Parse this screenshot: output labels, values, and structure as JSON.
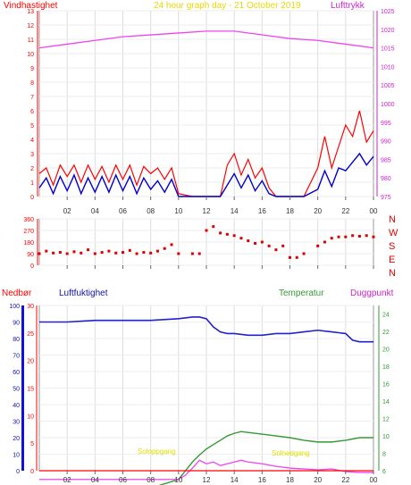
{
  "title": "24 hour graph day - 21 October 2019",
  "top": {
    "left_label": "Vindhastighet",
    "right_label": "Lufttrykk",
    "y_left_ticks": [
      "0",
      "1",
      "2",
      "3",
      "4",
      "5",
      "6",
      "7",
      "8",
      "9",
      "10",
      "11",
      "12",
      "13"
    ],
    "y_right_ticks": [
      "975",
      "980",
      "985",
      "990",
      "995",
      "1000",
      "1005",
      "1010",
      "1015",
      "1020",
      "1025"
    ]
  },
  "middle": {
    "y_left_ticks": [
      "0",
      "90",
      "180",
      "270",
      "360"
    ],
    "compass": [
      "N",
      "W",
      "S",
      "E",
      "N"
    ]
  },
  "bottom": {
    "nedbor_label": "Nedbør",
    "luftfukt_label": "Luftfuktighet",
    "temp_label": "Temperatur",
    "dugg_label": "Duggpunkt",
    "y_nedbor_ticks": [
      "0",
      "5",
      "10",
      "15",
      "20",
      "25",
      "30"
    ],
    "y_hum_ticks": [
      "0",
      "10",
      "20",
      "30",
      "40",
      "50",
      "60",
      "70",
      "80",
      "90",
      "100"
    ],
    "y_temp_ticks": [
      "6",
      "8",
      "10",
      "12",
      "14",
      "16",
      "18",
      "20",
      "22",
      "24"
    ],
    "soloppgang": "Soloppgang",
    "solnedgang": "Solnedgang"
  },
  "x_ticks": [
    "02",
    "04",
    "06",
    "08",
    "10",
    "12",
    "14",
    "16",
    "18",
    "20",
    "22",
    "00"
  ],
  "colors": {
    "wind": "#ff0000",
    "wind_avg": "#0000cc",
    "pressure": "#ee44ee",
    "winddir": "#dd0000",
    "humidity": "#2222cc",
    "temperature": "#339933",
    "dewpoint": "#ee44ee",
    "rain": "#ff0000",
    "sun": "#e0e000"
  },
  "chart_data": [
    {
      "type": "line",
      "name": "wind_pressure",
      "xlim": [
        0,
        24
      ],
      "ylim_left": [
        0,
        13
      ],
      "ylim_right": [
        975,
        1025
      ],
      "pressure": {
        "x": [
          0,
          2,
          4,
          6,
          8,
          10,
          12,
          14,
          16,
          18,
          20,
          22,
          24
        ],
        "y": [
          1015,
          1016,
          1017,
          1018,
          1018.5,
          1019,
          1019.5,
          1019.5,
          1018.5,
          1017.5,
          1017,
          1016,
          1015
        ]
      },
      "wind_avg": {
        "x": [
          0,
          0.5,
          1,
          1.5,
          2,
          2.5,
          3,
          3.5,
          4,
          4.5,
          5,
          5.5,
          6,
          6.5,
          7,
          7.5,
          8,
          8.5,
          9,
          9.5,
          10,
          11,
          12,
          13,
          13.5,
          14,
          14.5,
          15,
          15.5,
          16,
          16.5,
          17,
          18,
          19,
          20,
          20.5,
          21,
          21.5,
          22,
          22.5,
          23,
          23.5,
          24
        ],
        "y": [
          0.6,
          1.3,
          0.2,
          1.4,
          0.4,
          1.5,
          0.2,
          1.3,
          0.3,
          1.4,
          0.3,
          1.5,
          0.4,
          1.4,
          0.2,
          1.3,
          0.5,
          1.1,
          0.3,
          1.2,
          0,
          0,
          0,
          0,
          0.8,
          1.6,
          0.6,
          1.5,
          0.4,
          1.1,
          0.2,
          0,
          0,
          0,
          0.5,
          1.8,
          0.7,
          2.0,
          1.8,
          2.4,
          3.0,
          2.2,
          2.8
        ]
      },
      "wind_gust": {
        "x": [
          0,
          0.5,
          1,
          1.5,
          2,
          2.5,
          3,
          3.5,
          4,
          4.5,
          5,
          5.5,
          6,
          6.5,
          7,
          7.5,
          8,
          8.5,
          9,
          9.5,
          10,
          11,
          12,
          13,
          13.5,
          14,
          14.5,
          15,
          15.5,
          16,
          16.5,
          17,
          18,
          19,
          20,
          20.5,
          21,
          21.5,
          22,
          22.5,
          23,
          23.5,
          24
        ],
        "y": [
          1.6,
          2.0,
          0.8,
          2.2,
          1.4,
          2.2,
          1.0,
          2.2,
          1.2,
          2.1,
          1.0,
          2.2,
          1.2,
          2.2,
          0.8,
          2.1,
          1.6,
          2.0,
          1.2,
          2.0,
          0.2,
          0,
          0,
          0,
          2.2,
          3.0,
          1.5,
          2.6,
          1.3,
          2.0,
          0.6,
          0,
          0,
          0,
          2.0,
          4.2,
          2.0,
          3.5,
          5.0,
          4.2,
          6.0,
          3.8,
          4.6
        ]
      }
    },
    {
      "type": "scatter",
      "name": "wind_direction",
      "ylim": [
        0,
        360
      ],
      "x": [
        0,
        0.5,
        1,
        1.5,
        2,
        2.5,
        3,
        3.5,
        4,
        4.5,
        5,
        5.5,
        6,
        6.5,
        7,
        7.5,
        8,
        8.5,
        9,
        9.5,
        10,
        11,
        11.5,
        12,
        12.5,
        13,
        13.5,
        14,
        14.5,
        15,
        15.5,
        16,
        16.5,
        17,
        17.5,
        18,
        18.5,
        19,
        20,
        20.5,
        21,
        21.5,
        22,
        22.5,
        23,
        23.5,
        24
      ],
      "y": [
        90,
        110,
        95,
        100,
        90,
        105,
        95,
        120,
        90,
        100,
        110,
        95,
        100,
        115,
        90,
        100,
        95,
        110,
        130,
        160,
        90,
        90,
        90,
        270,
        300,
        250,
        240,
        230,
        210,
        190,
        170,
        180,
        150,
        120,
        150,
        60,
        60,
        90,
        150,
        180,
        210,
        220,
        220,
        230,
        225,
        230,
        220
      ]
    },
    {
      "type": "line",
      "name": "humidity_temperature",
      "ylim_humidity": [
        0,
        100
      ],
      "ylim_temperature": [
        6,
        25
      ],
      "ylim_rain": [
        0,
        30
      ],
      "humidity": {
        "x": [
          0,
          2,
          4,
          6,
          8,
          10,
          11,
          11.5,
          12,
          12.5,
          13,
          13.5,
          14,
          15,
          16,
          17,
          18,
          19,
          20,
          21,
          22,
          22.5,
          23,
          24
        ],
        "y": [
          90,
          90,
          91,
          91,
          91,
          92,
          93,
          93,
          92,
          87,
          84,
          83,
          83,
          82,
          82,
          83,
          83,
          84,
          85,
          84,
          83,
          79,
          78,
          78
        ]
      },
      "temperature": {
        "x": [
          0,
          8,
          10,
          10.5,
          11,
          11.5,
          12,
          12.5,
          13,
          13.5,
          14,
          14.5,
          15,
          16,
          17,
          18,
          19,
          20,
          21,
          22,
          23,
          24
        ],
        "y": [
          4,
          4,
          5,
          6,
          7,
          7.8,
          8.5,
          9,
          9.5,
          10,
          10.3,
          10.5,
          10.4,
          10.2,
          10,
          9.8,
          9.5,
          9.3,
          9.3,
          9.5,
          9.8,
          9.8
        ]
      },
      "dewpoint": {
        "x": [
          0,
          10,
          10.5,
          11,
          11.5,
          12,
          12.5,
          13,
          13.5,
          14,
          14.5,
          15,
          16,
          17,
          18,
          19,
          20,
          21,
          22,
          23,
          24
        ],
        "y": [
          5,
          5,
          5.5,
          6.3,
          7.2,
          6.8,
          7.0,
          6.6,
          6.8,
          7.0,
          7.2,
          7.0,
          6.8,
          6.5,
          6.3,
          6.2,
          6.1,
          6.2,
          5.9,
          5.8,
          5.8
        ]
      },
      "rain": {
        "x": [
          0,
          24
        ],
        "y": [
          0,
          0
        ]
      }
    }
  ]
}
